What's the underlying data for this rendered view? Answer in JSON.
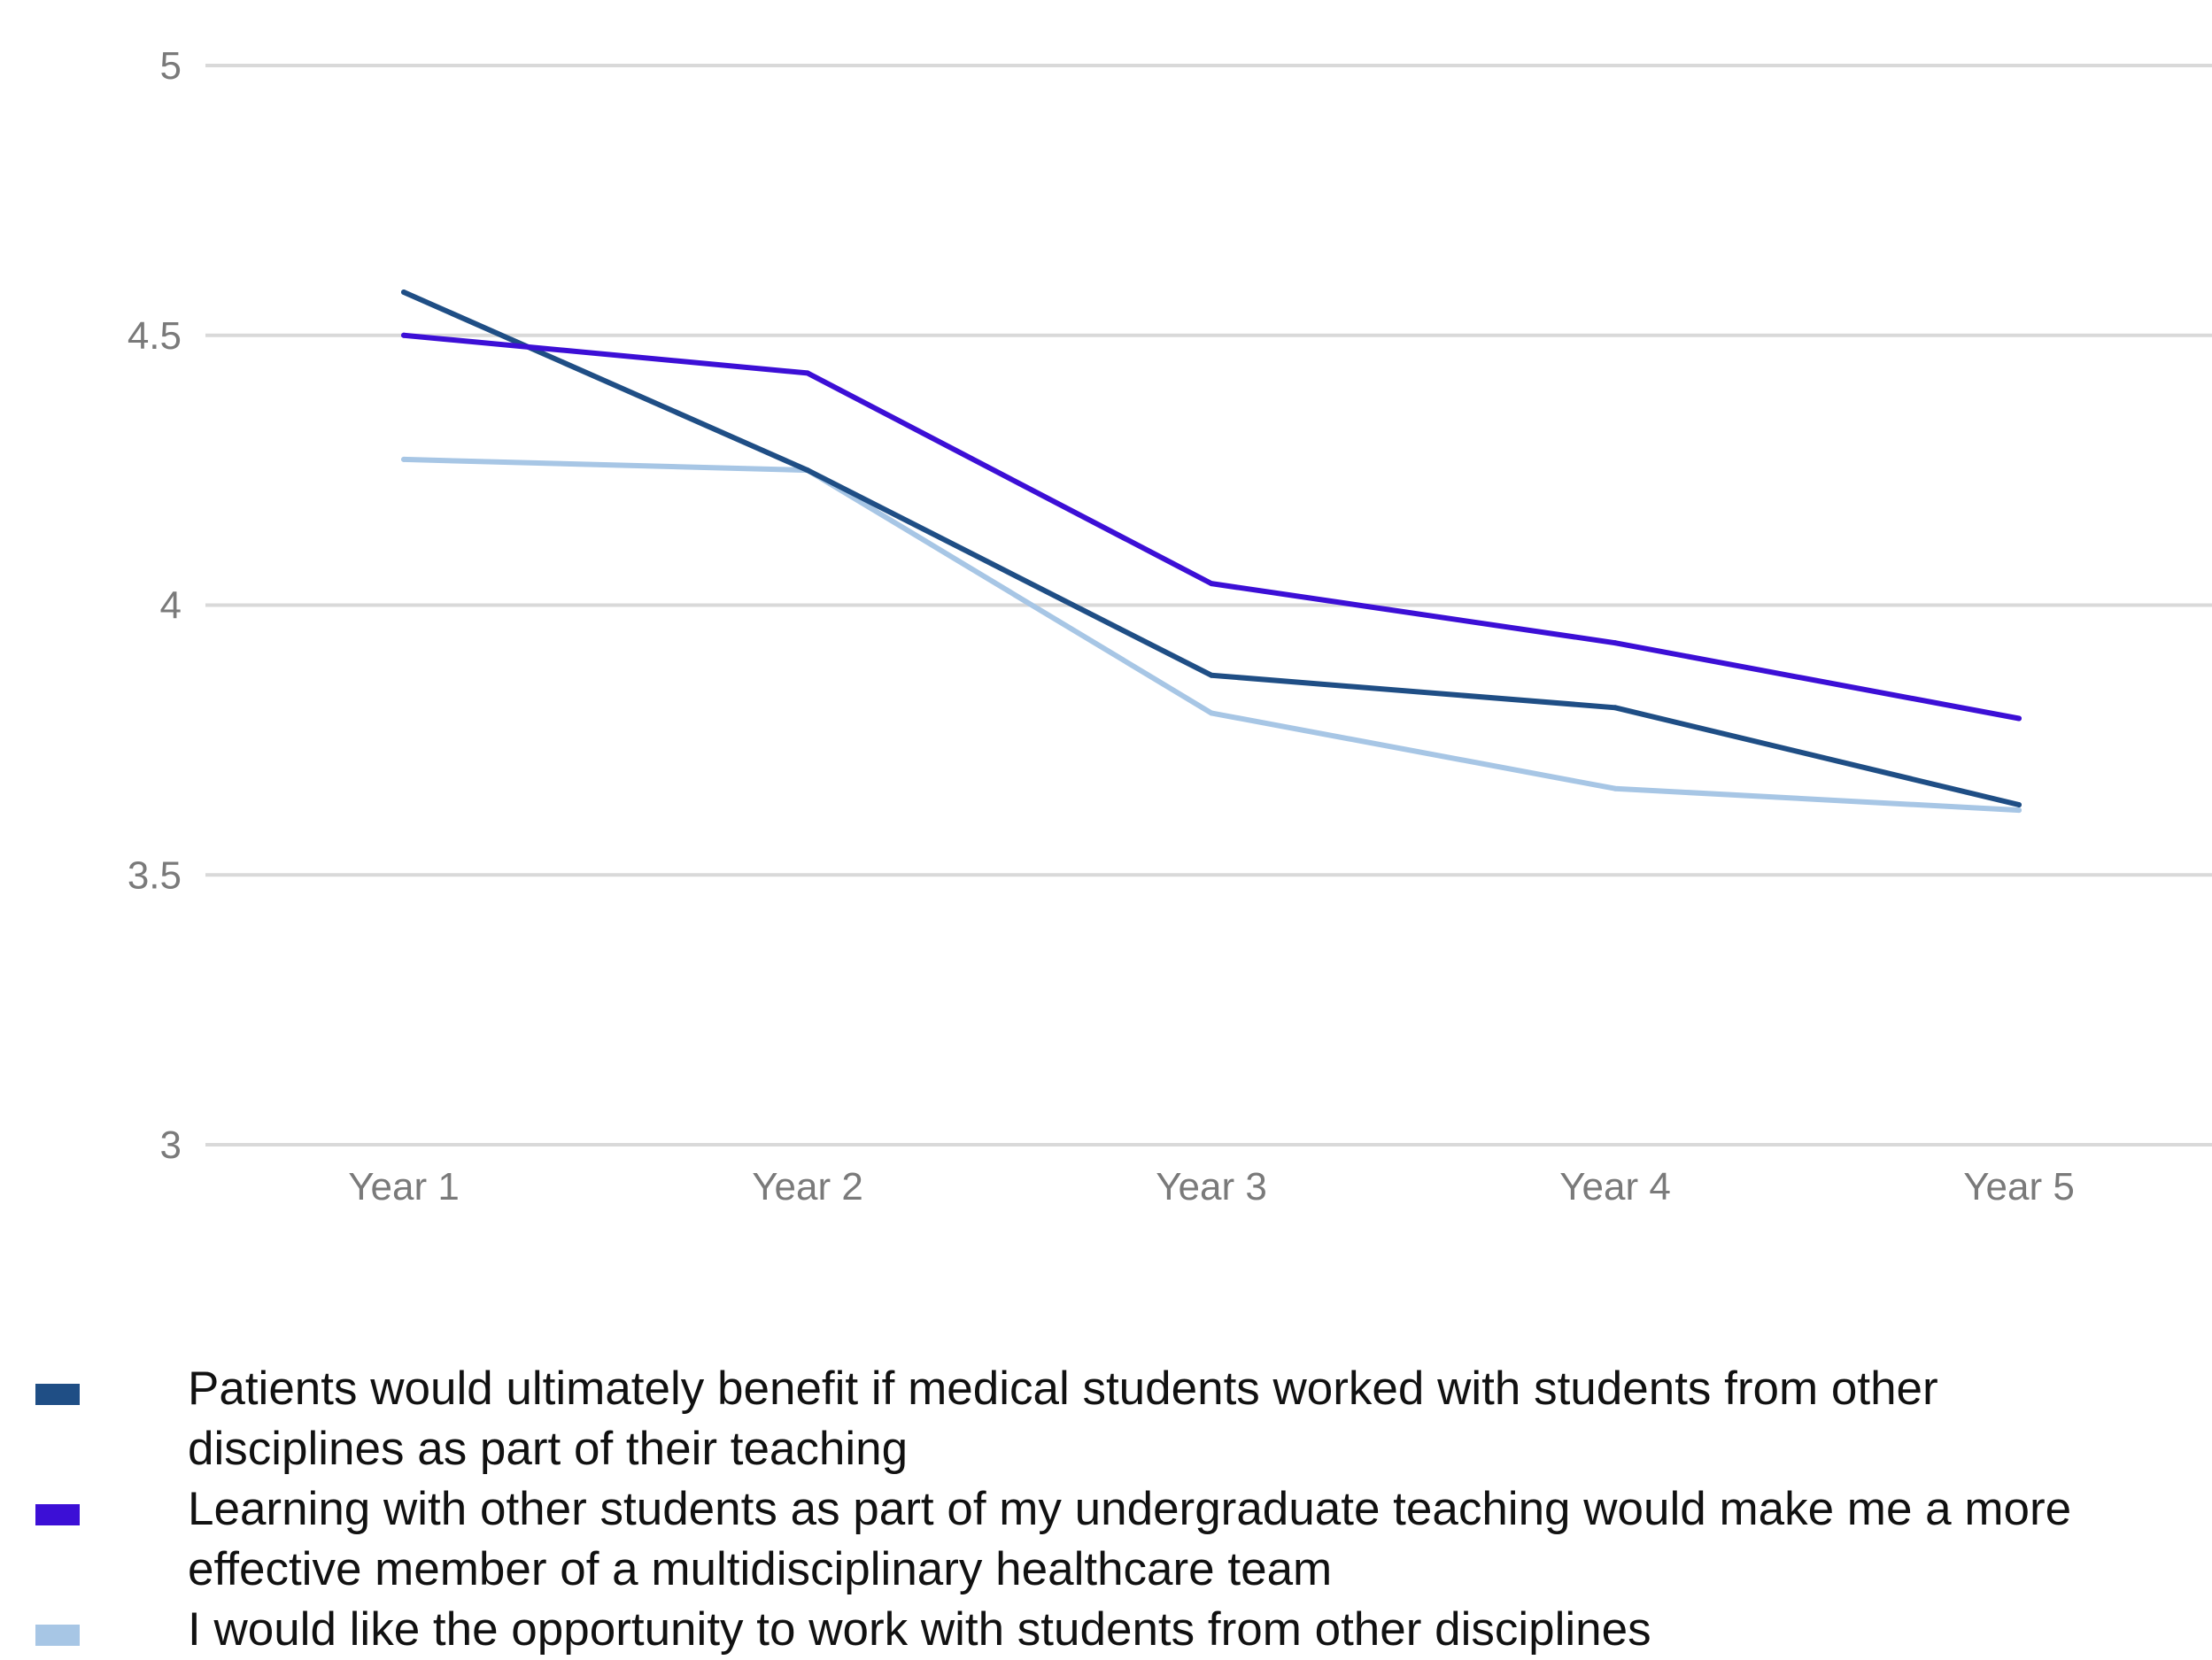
{
  "chart_data": {
    "type": "line",
    "title": "",
    "xlabel": "",
    "ylabel": "",
    "categories": [
      "Year 1",
      "Year 2",
      "Year 3",
      "Year 4",
      "Year 5"
    ],
    "ylim": [
      3,
      5
    ],
    "yticks": [
      "3",
      "3.5",
      "4",
      "4.5",
      "5"
    ],
    "grid": true,
    "legend_position": "bottom",
    "series": [
      {
        "name": "Patients would ultimately benefit if medical students worked with students from other disciplines as part of their teaching",
        "color": "#1f4e85",
        "values": [
          4.58,
          4.25,
          3.87,
          3.81,
          3.63
        ]
      },
      {
        "name": "Learning with other students as part of my undergraduate teaching would make me a more effective member of a multidisciplinary healthcare team",
        "color": "#3c0fd6",
        "values": [
          4.5,
          4.43,
          4.04,
          3.93,
          3.79
        ]
      },
      {
        "name": "I would like the opportunity to work with students from other disciplines",
        "color": "#a7c6e5",
        "values": [
          4.27,
          4.25,
          3.8,
          3.66,
          3.62
        ]
      }
    ]
  }
}
